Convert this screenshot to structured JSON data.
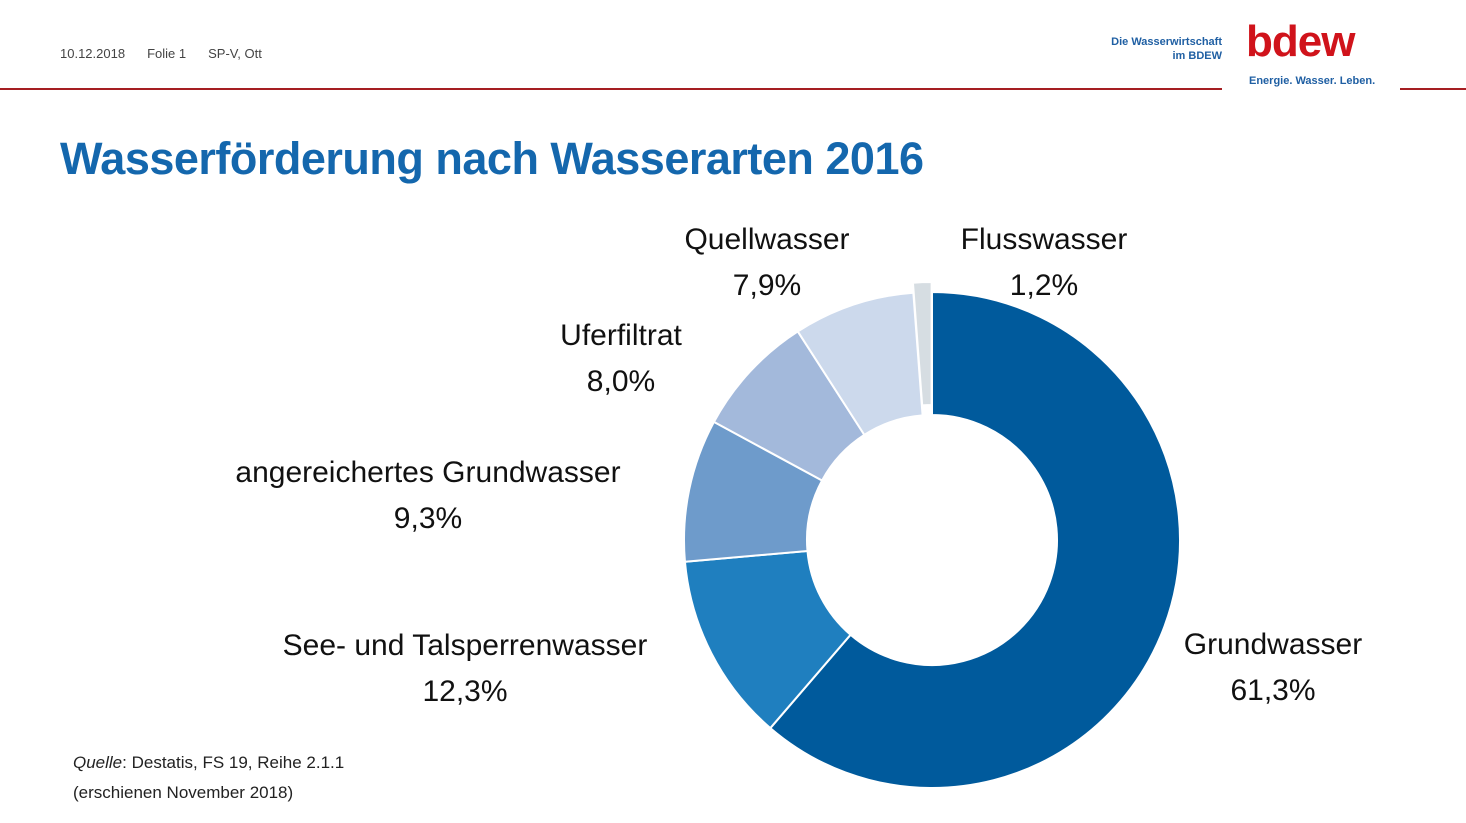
{
  "header": {
    "date": "10.12.2018",
    "slide": "Folie 1",
    "author": "SP-V, Ott",
    "brand_line1": "Die Wasserwirtschaft",
    "brand_line2": "im BDEW",
    "logo": "bdew",
    "tagline": "Energie. Wasser. Leben."
  },
  "colors": {
    "accent_red": "#a51e22",
    "title_blue": "#1467ad"
  },
  "chart_data": {
    "type": "pie",
    "subtype": "donut",
    "title": "Wasserförderung nach Wasserarten 2016",
    "unit": "%",
    "slices": [
      {
        "label": "Grundwasser",
        "value": 61.3,
        "display": "61,3%",
        "color": "#005a9c"
      },
      {
        "label": "See- und Talsperrenwasser",
        "value": 12.3,
        "display": "12,3%",
        "color": "#1f7fbf"
      },
      {
        "label": "angereichertes Grundwasser",
        "value": 9.3,
        "display": "9,3%",
        "color": "#6e9bcb"
      },
      {
        "label": "Uferfiltrat",
        "value": 8.0,
        "display": "8,0%",
        "color": "#a3b9db"
      },
      {
        "label": "Quellwasser",
        "value": 7.9,
        "display": "7,9%",
        "color": "#ccd9ec"
      },
      {
        "label": "Flusswasser",
        "value": 1.2,
        "display": "1,2%",
        "color": "#d6dde2",
        "exploded": true
      }
    ]
  },
  "source": {
    "prefix": "Quelle",
    "text": ": Destatis, FS 19, Reihe 2.1.1",
    "note": "(erschienen November 2018)"
  }
}
